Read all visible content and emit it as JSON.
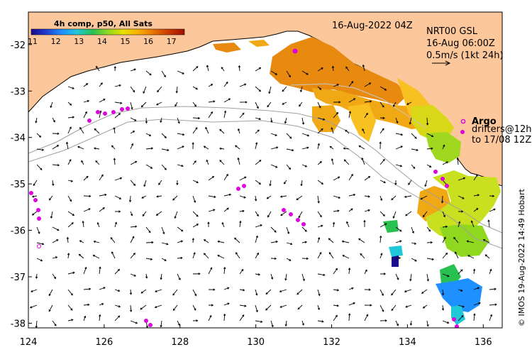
{
  "map": {
    "date_label": "16-Aug-2022 04Z",
    "product_label": "4h comp, p50, All Sats",
    "colorbar": {
      "ticks": [
        "11",
        "12",
        "13",
        "14",
        "15",
        "16",
        "17"
      ],
      "colors": [
        "#1a0a8c",
        "#1f3fd0",
        "#1e90ff",
        "#20c8d8",
        "#28c050",
        "#90d820",
        "#e8e000",
        "#f8b000",
        "#e87000",
        "#c83800",
        "#a01000"
      ]
    },
    "current_model": {
      "line1": "NRT00 GSL",
      "line2": "16-Aug 06:00Z",
      "line3": "0.5m/s (1kt 24h)"
    },
    "legend": {
      "argo_label": "Argo",
      "drifters_line1": "drifters@12h",
      "drifters_line2": "to 17/08 12Z"
    },
    "credit": "© IMOS 19-Aug-2022 14:49 Hobart",
    "x_ticks": [
      {
        "value": 124,
        "label": "124"
      },
      {
        "value": 126,
        "label": "126"
      },
      {
        "value": 128,
        "label": "128"
      },
      {
        "value": 130,
        "label": "130"
      },
      {
        "value": 132,
        "label": "132"
      },
      {
        "value": 134,
        "label": "134"
      },
      {
        "value": 136,
        "label": "136"
      }
    ],
    "y_ticks": [
      {
        "value": -32,
        "label": "-32"
      },
      {
        "value": -33,
        "label": "-33"
      },
      {
        "value": -34,
        "label": "-34"
      },
      {
        "value": -35,
        "label": "-35"
      },
      {
        "value": -36,
        "label": "-36"
      },
      {
        "value": -37,
        "label": "-37"
      },
      {
        "value": -38,
        "label": "-38"
      }
    ],
    "lon_range": [
      124,
      136.5
    ],
    "lat_range": [
      -38.1,
      -31.3
    ],
    "colors": {
      "land": "#fcc79a",
      "coast": "#000000",
      "isobath": "#a0a0a0",
      "argo": "#e000e0",
      "arrow": "#000000"
    }
  }
}
